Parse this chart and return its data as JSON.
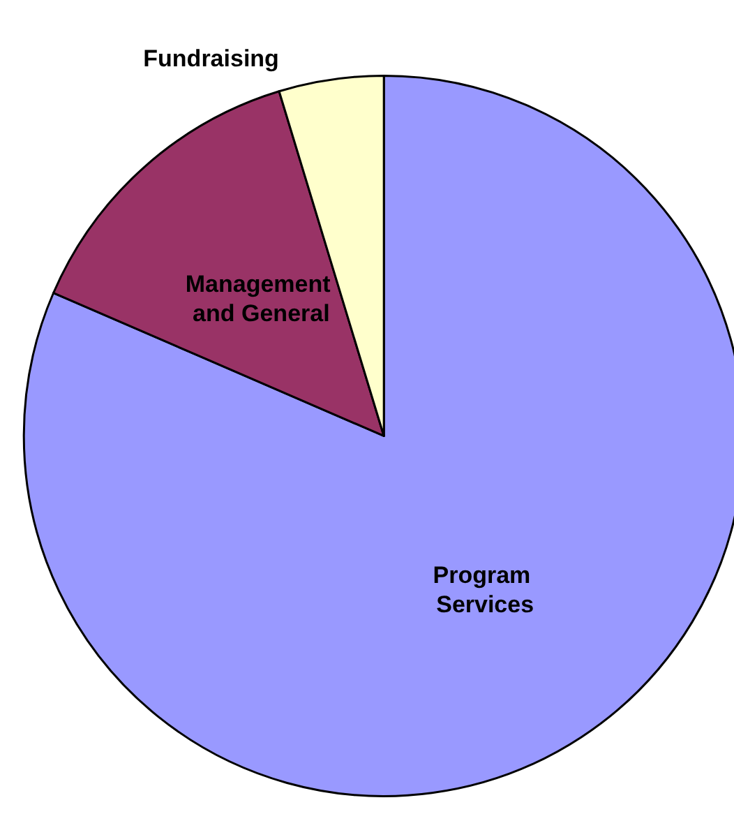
{
  "chart_data": {
    "type": "pie",
    "categories": [
      "Program Services",
      "Management and General",
      "Fundraising"
    ],
    "values": [
      81.5,
      13.8,
      4.7
    ],
    "colors": [
      "#9999ff",
      "#993366",
      "#ffffcc"
    ]
  }
}
